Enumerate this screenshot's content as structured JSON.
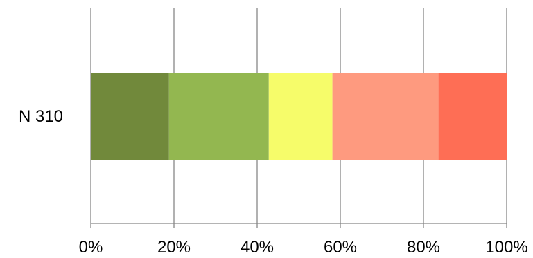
{
  "chart_data": {
    "type": "bar",
    "orientation": "horizontal",
    "stacked": "percent",
    "categories": [
      "N 310"
    ],
    "series": [
      {
        "values": [
          18.8
        ],
        "color": "#71893b"
      },
      {
        "values": [
          24.0
        ],
        "color": "#93b750"
      },
      {
        "values": [
          15.3
        ],
        "color": "#f6fc6a"
      },
      {
        "values": [
          25.5
        ],
        "color": "#fe9a7f"
      },
      {
        "values": [
          16.4
        ],
        "color": "#fe6e55"
      }
    ],
    "xlim": [
      0,
      100
    ],
    "xticks": [
      0,
      20,
      40,
      60,
      80,
      100
    ],
    "xtick_labels": [
      "0%",
      "20%",
      "40%",
      "60%",
      "80%",
      "100%"
    ],
    "grid": "vertical",
    "legend": "none",
    "title": "",
    "xlabel": "",
    "ylabel": ""
  }
}
